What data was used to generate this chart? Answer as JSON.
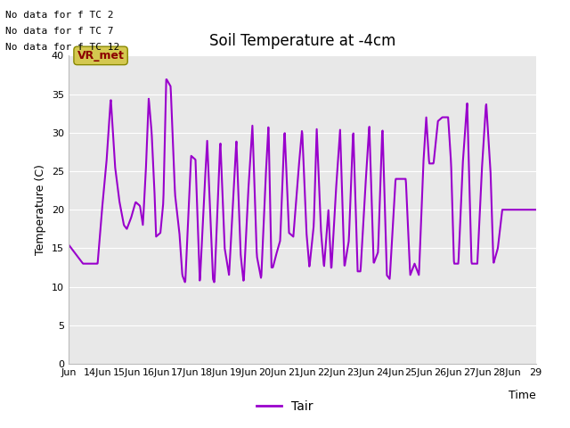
{
  "title": "Soil Temperature at -4cm",
  "xlabel": "Time",
  "ylabel": "Temperature (C)",
  "ylim": [
    0,
    40
  ],
  "yticks": [
    0,
    5,
    10,
    15,
    20,
    25,
    30,
    35,
    40
  ],
  "background_color": "#e8e8e8",
  "line_color": "#9900cc",
  "line_width": 1.5,
  "legend_label": "Tair",
  "no_data_texts": [
    "No data for f TC 2",
    "No data for f TC 7",
    "No data for f TC 12"
  ],
  "vr_met_text": "VR_met",
  "y_key_points": {
    "13.0": 15.5,
    "13.3": 14.0,
    "13.5": 13.0,
    "13.8": 13.0,
    "14.0": 13.0,
    "14.15": 20.0,
    "14.3": 26.0,
    "14.45": 34.5,
    "14.6": 25.5,
    "14.75": 21.0,
    "14.9": 18.0,
    "15.0": 17.5,
    "15.15": 19.0,
    "15.3": 21.0,
    "15.45": 20.5,
    "15.55": 18.0,
    "15.65": 25.0,
    "15.75": 34.5,
    "15.85": 30.0,
    "15.95": 22.0,
    "16.0": 16.5,
    "16.15": 17.0,
    "16.25": 21.0,
    "16.35": 37.0,
    "16.5": 36.0,
    "16.65": 22.0,
    "16.8": 17.0,
    "16.9": 11.5,
    "17.0": 10.5,
    "17.2": 27.0,
    "17.35": 26.5,
    "17.5": 10.5,
    "17.65": 22.0,
    "17.75": 29.0,
    "17.85": 20.0,
    "17.95": 11.0,
    "18.0": 10.5,
    "18.2": 29.0,
    "18.35": 15.0,
    "18.5": 11.5,
    "18.65": 22.0,
    "18.75": 29.0,
    "18.9": 14.0,
    "19.0": 10.5,
    "19.15": 22.0,
    "19.3": 31.0,
    "19.45": 14.0,
    "19.6": 11.0,
    "19.75": 24.0,
    "19.85": 31.0,
    "19.95": 12.5,
    "20.0": 12.5,
    "20.1": 14.0,
    "20.25": 16.0,
    "20.4": 30.5,
    "20.55": 17.0,
    "20.7": 16.5,
    "20.85": 24.0,
    "21.0": 30.5,
    "21.15": 17.0,
    "21.25": 12.5,
    "21.4": 18.0,
    "21.5": 30.5,
    "21.65": 17.0,
    "21.75": 12.5,
    "21.9": 20.0,
    "22.0": 12.0,
    "22.15": 22.0,
    "22.3": 30.5,
    "22.45": 12.5,
    "22.6": 16.0,
    "22.75": 30.5,
    "22.9": 12.0,
    "23.0": 12.0,
    "23.15": 22.0,
    "23.3": 31.0,
    "23.45": 13.0,
    "23.6": 14.5,
    "23.75": 31.0,
    "23.9": 11.5,
    "24.0": 11.0,
    "24.2": 24.0,
    "24.4": 24.0,
    "24.55": 24.0,
    "24.7": 11.5,
    "24.85": 13.0,
    "25.0": 11.5,
    "25.15": 26.0,
    "25.25": 32.0,
    "25.35": 26.0,
    "25.5": 26.0,
    "25.65": 31.5,
    "25.8": 32.0,
    "26.0": 32.0,
    "26.1": 26.0,
    "26.2": 13.0,
    "26.35": 13.0,
    "26.5": 26.0,
    "26.65": 34.0,
    "26.8": 13.0,
    "27.0": 13.0,
    "27.15": 25.0,
    "27.3": 34.0,
    "27.45": 25.0,
    "27.55": 13.0,
    "27.7": 15.0,
    "27.85": 20.0,
    "28.0": 20.0,
    "28.5": 20.0,
    "29.0": 20.0
  }
}
